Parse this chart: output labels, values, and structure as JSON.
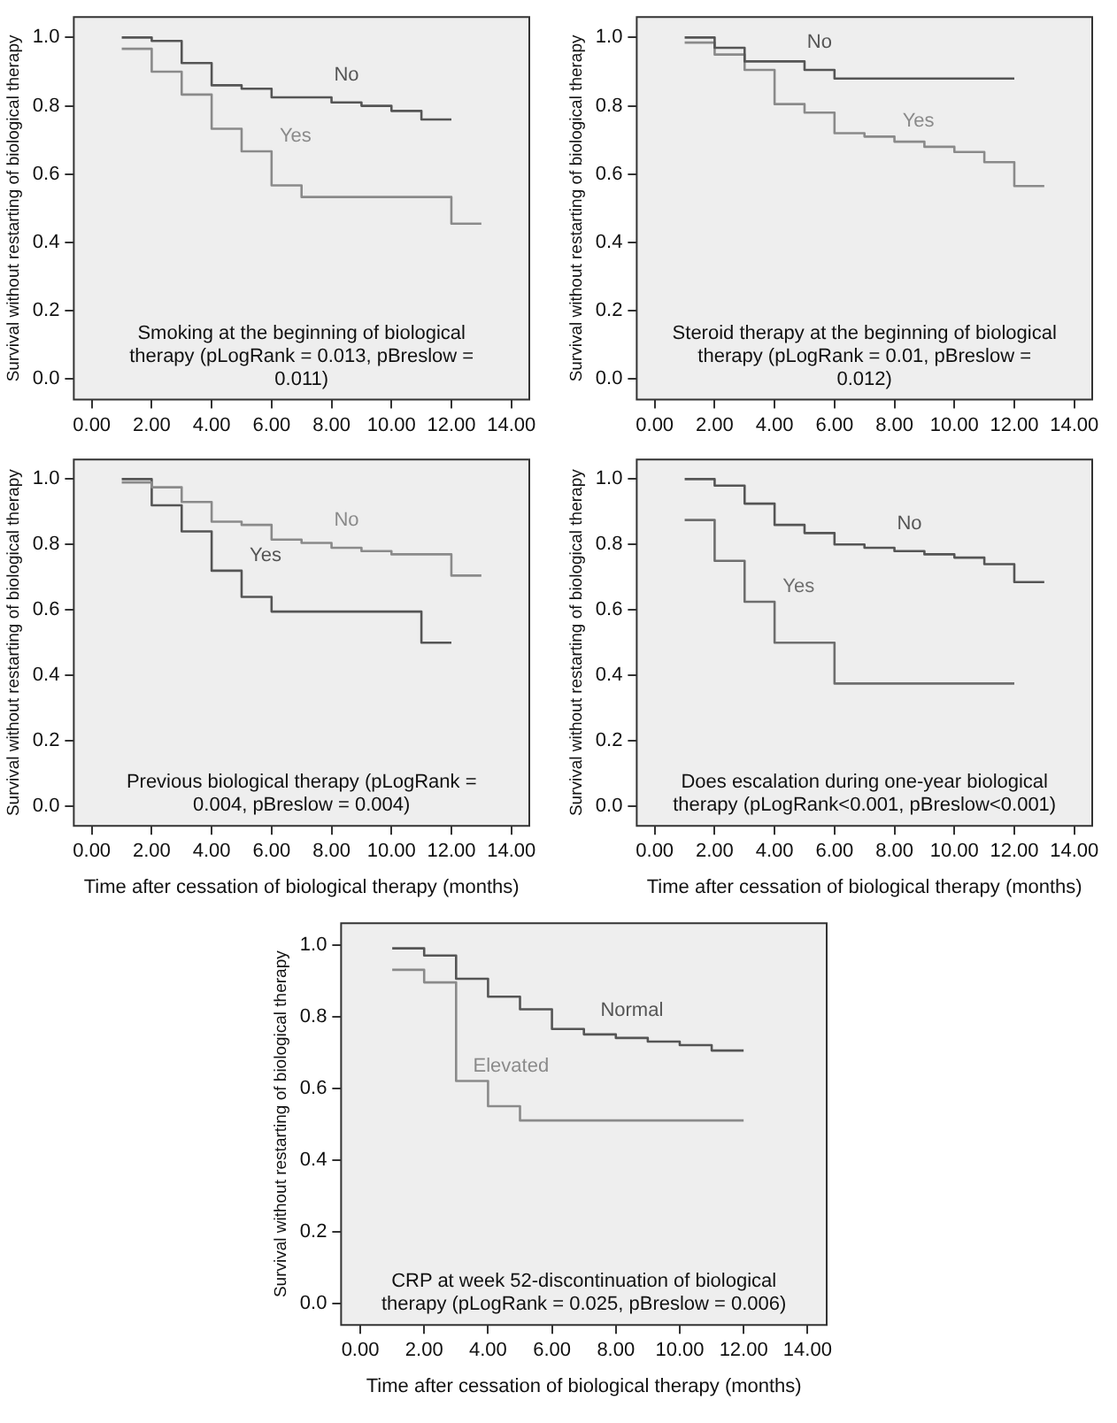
{
  "chart_data": [
    {
      "type": "step",
      "ylabel": "Survival without restarting of biological therapy",
      "annotations": [
        "Smoking at the beginning of biological therapy (pLogRank = 0.013, pBreslow = 0.011)"
      ],
      "xlim": [
        -0.6,
        14.6
      ],
      "ylim": [
        -0.06,
        1.06
      ],
      "xticks": [
        {
          "value": 0,
          "label": "0.00"
        },
        {
          "value": 2,
          "label": "2.00"
        },
        {
          "value": 4,
          "label": "4.00"
        },
        {
          "value": 6,
          "label": "6.00"
        },
        {
          "value": 8,
          "label": "8.00"
        },
        {
          "value": 10,
          "label": "10.00"
        },
        {
          "value": 12,
          "label": "12.00"
        },
        {
          "value": 14,
          "label": "14.00"
        }
      ],
      "yticks": [
        {
          "value": 0,
          "label": "0.0"
        },
        {
          "value": 0.2,
          "label": "0.2"
        },
        {
          "value": 0.4,
          "label": "0.4"
        },
        {
          "value": 0.6,
          "label": "0.6"
        },
        {
          "value": 0.8,
          "label": "0.8"
        },
        {
          "value": 1,
          "label": "1.0"
        }
      ],
      "grid": false,
      "legend": false,
      "marker": "none",
      "series": [
        {
          "name": "No",
          "color": "#555555",
          "x": [
            1,
            2,
            3,
            4,
            5,
            6,
            8,
            9,
            10,
            11,
            12
          ],
          "values": [
            1.0,
            0.99,
            0.925,
            0.86,
            0.85,
            0.825,
            0.81,
            0.8,
            0.785,
            0.76,
            0.76
          ]
        },
        {
          "name": "Yes",
          "color": "#8a8a8a",
          "x": [
            1,
            2,
            3,
            4,
            5,
            6,
            7,
            12,
            13
          ],
          "values": [
            0.967,
            0.9,
            0.833,
            0.733,
            0.667,
            0.567,
            0.533,
            0.455,
            0.455
          ]
        }
      ]
    },
    {
      "type": "step",
      "ylabel": "Survival without restarting of biological therapy",
      "annotations": [
        "Steroid therapy at the beginning of biological therapy (pLogRank = 0.01, pBreslow = 0.012)"
      ],
      "xlim": [
        -0.6,
        14.6
      ],
      "ylim": [
        -0.06,
        1.06
      ],
      "xticks": [
        {
          "value": 0,
          "label": "0.00"
        },
        {
          "value": 2,
          "label": "2.00"
        },
        {
          "value": 4,
          "label": "4.00"
        },
        {
          "value": 6,
          "label": "6.00"
        },
        {
          "value": 8,
          "label": "8.00"
        },
        {
          "value": 10,
          "label": "10.00"
        },
        {
          "value": 12,
          "label": "12.00"
        },
        {
          "value": 14,
          "label": "14.00"
        }
      ],
      "yticks": [
        {
          "value": 0,
          "label": "0.0"
        },
        {
          "value": 0.2,
          "label": "0.2"
        },
        {
          "value": 0.4,
          "label": "0.4"
        },
        {
          "value": 0.6,
          "label": "0.6"
        },
        {
          "value": 0.8,
          "label": "0.8"
        },
        {
          "value": 1,
          "label": "1.0"
        }
      ],
      "grid": false,
      "legend": false,
      "marker": "none",
      "series": [
        {
          "name": "No",
          "color": "#555555",
          "x": [
            1,
            2,
            3,
            5,
            6,
            12
          ],
          "values": [
            1.0,
            0.97,
            0.93,
            0.905,
            0.88,
            0.88
          ]
        },
        {
          "name": "Yes",
          "color": "#8a8a8a",
          "x": [
            1,
            2,
            3,
            4,
            5,
            6,
            7,
            8,
            9,
            10,
            11,
            12,
            13
          ],
          "values": [
            0.985,
            0.95,
            0.905,
            0.805,
            0.78,
            0.72,
            0.71,
            0.695,
            0.68,
            0.665,
            0.635,
            0.565,
            0.565
          ]
        }
      ]
    },
    {
      "type": "step",
      "xlabel": "Time after cessation of biological therapy (months)",
      "ylabel": "Survival without restarting of biological therapy",
      "annotations": [
        "Previous biological therapy (pLogRank = 0.004, pBreslow = 0.004)"
      ],
      "xlim": [
        -0.6,
        14.6
      ],
      "ylim": [
        -0.06,
        1.06
      ],
      "xticks": [
        {
          "value": 0,
          "label": "0.00"
        },
        {
          "value": 2,
          "label": "2.00"
        },
        {
          "value": 4,
          "label": "4.00"
        },
        {
          "value": 6,
          "label": "6.00"
        },
        {
          "value": 8,
          "label": "8.00"
        },
        {
          "value": 10,
          "label": "10.00"
        },
        {
          "value": 12,
          "label": "12.00"
        },
        {
          "value": 14,
          "label": "14.00"
        }
      ],
      "yticks": [
        {
          "value": 0,
          "label": "0.0"
        },
        {
          "value": 0.2,
          "label": "0.2"
        },
        {
          "value": 0.4,
          "label": "0.4"
        },
        {
          "value": 0.6,
          "label": "0.6"
        },
        {
          "value": 0.8,
          "label": "0.8"
        },
        {
          "value": 1,
          "label": "1.0"
        }
      ],
      "grid": false,
      "legend": false,
      "marker": "none",
      "series": [
        {
          "name": "No",
          "color": "#8a8a8a",
          "x": [
            1,
            2,
            3,
            4,
            5,
            6,
            7,
            8,
            9,
            10,
            12,
            13
          ],
          "values": [
            0.99,
            0.975,
            0.93,
            0.87,
            0.86,
            0.815,
            0.805,
            0.79,
            0.78,
            0.77,
            0.705,
            0.705
          ]
        },
        {
          "name": "Yes",
          "color": "#555555",
          "x": [
            1,
            2,
            3,
            4,
            5,
            6,
            11,
            12
          ],
          "values": [
            1.0,
            0.92,
            0.84,
            0.72,
            0.64,
            0.595,
            0.5,
            0.5
          ]
        }
      ]
    },
    {
      "type": "step",
      "xlabel": "Time after cessation of biological therapy (months)",
      "ylabel": "Survival without restarting of biological therapy",
      "annotations": [
        "Does escalation during one-year biological therapy (pLogRank<0.001, pBreslow<0.001)"
      ],
      "xlim": [
        -0.6,
        14.6
      ],
      "ylim": [
        -0.06,
        1.06
      ],
      "xticks": [
        {
          "value": 0,
          "label": "0.00"
        },
        {
          "value": 2,
          "label": "2.00"
        },
        {
          "value": 4,
          "label": "4.00"
        },
        {
          "value": 6,
          "label": "6.00"
        },
        {
          "value": 8,
          "label": "8.00"
        },
        {
          "value": 10,
          "label": "10.00"
        },
        {
          "value": 12,
          "label": "12.00"
        },
        {
          "value": 14,
          "label": "14.00"
        }
      ],
      "yticks": [
        {
          "value": 0,
          "label": "0.0"
        },
        {
          "value": 0.2,
          "label": "0.2"
        },
        {
          "value": 0.4,
          "label": "0.4"
        },
        {
          "value": 0.6,
          "label": "0.6"
        },
        {
          "value": 0.8,
          "label": "0.8"
        },
        {
          "value": 1,
          "label": "1.0"
        }
      ],
      "grid": false,
      "legend": false,
      "marker": "none",
      "series": [
        {
          "name": "No",
          "color": "#555555",
          "x": [
            1,
            2,
            3,
            4,
            5,
            6,
            7,
            8,
            9,
            10,
            11,
            12,
            13
          ],
          "values": [
            1.0,
            0.98,
            0.925,
            0.86,
            0.835,
            0.8,
            0.79,
            0.78,
            0.77,
            0.76,
            0.74,
            0.685,
            0.685
          ]
        },
        {
          "name": "Yes",
          "color": "#6e6e6e",
          "x": [
            1,
            2,
            3,
            4,
            6,
            12
          ],
          "values": [
            0.875,
            0.75,
            0.625,
            0.5,
            0.375,
            0.375
          ]
        }
      ]
    },
    {
      "type": "step",
      "xlabel": "Time after cessation of biological therapy (months)",
      "ylabel": "Survival without restarting of biological therapy",
      "annotations": [
        "CRP at week 52-discontinuation of biological therapy (pLogRank = 0.025, pBreslow = 0.006)"
      ],
      "xlim": [
        -0.6,
        14.6
      ],
      "ylim": [
        -0.06,
        1.06
      ],
      "xticks": [
        {
          "value": 0,
          "label": "0.00"
        },
        {
          "value": 2,
          "label": "2.00"
        },
        {
          "value": 4,
          "label": "4.00"
        },
        {
          "value": 6,
          "label": "6.00"
        },
        {
          "value": 8,
          "label": "8.00"
        },
        {
          "value": 10,
          "label": "10.00"
        },
        {
          "value": 12,
          "label": "12.00"
        },
        {
          "value": 14,
          "label": "14.00"
        }
      ],
      "yticks": [
        {
          "value": 0,
          "label": "0.0"
        },
        {
          "value": 0.2,
          "label": "0.2"
        },
        {
          "value": 0.4,
          "label": "0.4"
        },
        {
          "value": 0.6,
          "label": "0.6"
        },
        {
          "value": 0.8,
          "label": "0.8"
        },
        {
          "value": 1,
          "label": "1.0"
        }
      ],
      "grid": false,
      "legend": false,
      "marker": "none",
      "series": [
        {
          "name": "Normal",
          "color": "#555555",
          "x": [
            1,
            2,
            3,
            4,
            5,
            6,
            7,
            8,
            9,
            10,
            11,
            12
          ],
          "values": [
            0.99,
            0.97,
            0.905,
            0.855,
            0.82,
            0.765,
            0.75,
            0.74,
            0.73,
            0.72,
            0.705,
            0.705
          ]
        },
        {
          "name": "Elevated",
          "color": "#8a8a8a",
          "x": [
            1,
            2,
            3,
            4,
            5,
            12
          ],
          "values": [
            0.93,
            0.895,
            0.62,
            0.55,
            0.51,
            0.51
          ]
        }
      ]
    }
  ]
}
